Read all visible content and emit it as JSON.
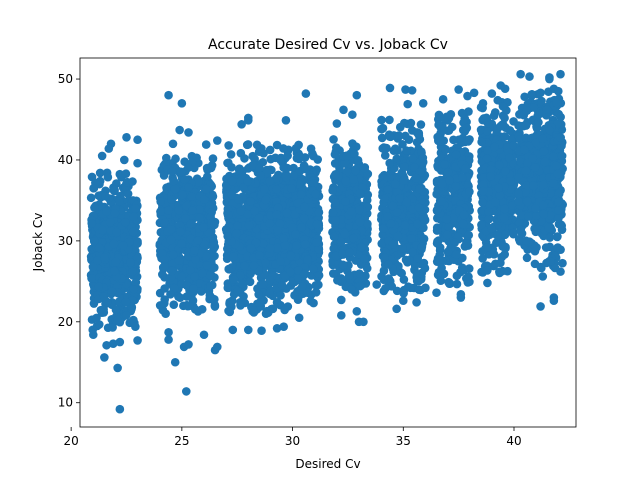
{
  "chart_data": {
    "type": "scatter",
    "title": "Accurate Desired Cv vs. Joback Cv",
    "xlabel": "Desired Cv",
    "ylabel": "Joback Cv",
    "xlim": [
      20.4,
      42.8
    ],
    "ylim": [
      7.0,
      52.6
    ],
    "xticks": [
      20,
      25,
      30,
      35,
      40
    ],
    "yticks": [
      10,
      20,
      30,
      40,
      50
    ],
    "grid": false,
    "marker_color": "#1f77b4",
    "bands": [
      {
        "x0": 20.9,
        "x1": 23.0,
        "ymin": 19.0,
        "ymax": 38.5,
        "n": 620,
        "ymean": 29.0,
        "ysd": 4.2
      },
      {
        "x0": 24.0,
        "x1": 26.5,
        "ymin": 21.0,
        "ymax": 40.5,
        "n": 620,
        "ymean": 31.0,
        "ysd": 4.3
      },
      {
        "x0": 27.0,
        "x1": 31.2,
        "ymin": 21.0,
        "ymax": 42.0,
        "n": 1250,
        "ymean": 31.5,
        "ysd": 4.5
      },
      {
        "x0": 31.8,
        "x1": 33.4,
        "ymin": 23.0,
        "ymax": 43.0,
        "n": 380,
        "ymean": 33.0,
        "ysd": 4.2
      },
      {
        "x0": 34.0,
        "x1": 36.0,
        "ymin": 23.5,
        "ymax": 45.0,
        "n": 560,
        "ymean": 34.0,
        "ysd": 4.5
      },
      {
        "x0": 36.5,
        "x1": 38.0,
        "ymin": 24.5,
        "ymax": 46.0,
        "n": 420,
        "ymean": 35.0,
        "ysd": 4.7
      },
      {
        "x0": 38.5,
        "x1": 40.0,
        "ymin": 26.0,
        "ymax": 47.5,
        "n": 460,
        "ymean": 36.5,
        "ysd": 4.7
      },
      {
        "x0": 40.2,
        "x1": 42.2,
        "ymin": 26.5,
        "ymax": 48.5,
        "n": 620,
        "ymean": 37.5,
        "ysd": 4.8
      }
    ],
    "points": [
      [
        22.2,
        9.2
      ],
      [
        25.2,
        11.4
      ],
      [
        22.1,
        14.3
      ],
      [
        24.7,
        15.0
      ],
      [
        21.5,
        15.6
      ],
      [
        25.1,
        16.9
      ],
      [
        25.3,
        17.2
      ],
      [
        21.9,
        17.3
      ],
      [
        22.2,
        17.5
      ],
      [
        21.6,
        17.1
      ],
      [
        23.0,
        17.7
      ],
      [
        26.5,
        16.5
      ],
      [
        26.6,
        16.9
      ],
      [
        21.0,
        18.4
      ],
      [
        24.4,
        17.8
      ],
      [
        24.4,
        18.7
      ],
      [
        22.9,
        19.4
      ],
      [
        26.0,
        18.4
      ],
      [
        27.3,
        19.0
      ],
      [
        28.0,
        19.0
      ],
      [
        28.6,
        18.9
      ],
      [
        29.3,
        19.2
      ],
      [
        29.6,
        19.4
      ],
      [
        30.3,
        20.5
      ],
      [
        28.8,
        21.0
      ],
      [
        32.2,
        20.8
      ],
      [
        32.2,
        22.7
      ],
      [
        33.0,
        20.0
      ],
      [
        33.2,
        20.0
      ],
      [
        32.9,
        21.3
      ],
      [
        34.7,
        21.6
      ],
      [
        35.0,
        22.6
      ],
      [
        35.6,
        22.4
      ],
      [
        37.6,
        23.0
      ],
      [
        37.6,
        23.4
      ],
      [
        38.8,
        24.8
      ],
      [
        41.2,
        21.9
      ],
      [
        41.8,
        22.6
      ],
      [
        41.8,
        23.0
      ],
      [
        41.3,
        25.6
      ],
      [
        42.1,
        26.2
      ],
      [
        36.5,
        23.6
      ],
      [
        33.8,
        24.6
      ],
      [
        36.0,
        24.2
      ],
      [
        24.4,
        48.0
      ],
      [
        24.6,
        42.0
      ],
      [
        25.3,
        43.4
      ],
      [
        24.9,
        43.7
      ],
      [
        23.0,
        42.5
      ],
      [
        22.5,
        42.8
      ],
      [
        21.8,
        42.0
      ],
      [
        21.7,
        41.4
      ],
      [
        25.0,
        47.0
      ],
      [
        27.7,
        44.4
      ],
      [
        28.0,
        44.9
      ],
      [
        28.0,
        45.2
      ],
      [
        29.7,
        44.9
      ],
      [
        30.6,
        48.2
      ],
      [
        32.3,
        46.2
      ],
      [
        32.7,
        45.6
      ],
      [
        32.0,
        44.5
      ],
      [
        32.9,
        48.0
      ],
      [
        34.4,
        48.9
      ],
      [
        35.1,
        48.7
      ],
      [
        35.4,
        48.6
      ],
      [
        35.2,
        46.9
      ],
      [
        35.9,
        47.0
      ],
      [
        36.8,
        47.5
      ],
      [
        37.5,
        48.7
      ],
      [
        37.9,
        47.9
      ],
      [
        38.2,
        48.3
      ],
      [
        39.0,
        48.2
      ],
      [
        39.4,
        49.2
      ],
      [
        39.6,
        48.8
      ],
      [
        40.3,
        50.6
      ],
      [
        40.7,
        50.3
      ],
      [
        41.6,
        50.2
      ],
      [
        41.6,
        50.0
      ],
      [
        42.1,
        50.6
      ],
      [
        41.8,
        48.8
      ],
      [
        42.0,
        48.5
      ],
      [
        41.2,
        48.3
      ],
      [
        40.8,
        48.1
      ],
      [
        38.6,
        47.0
      ],
      [
        26.1,
        41.9
      ],
      [
        26.6,
        42.4
      ],
      [
        21.4,
        40.5
      ],
      [
        22.4,
        40.0
      ],
      [
        23.0,
        39.6
      ]
    ]
  }
}
